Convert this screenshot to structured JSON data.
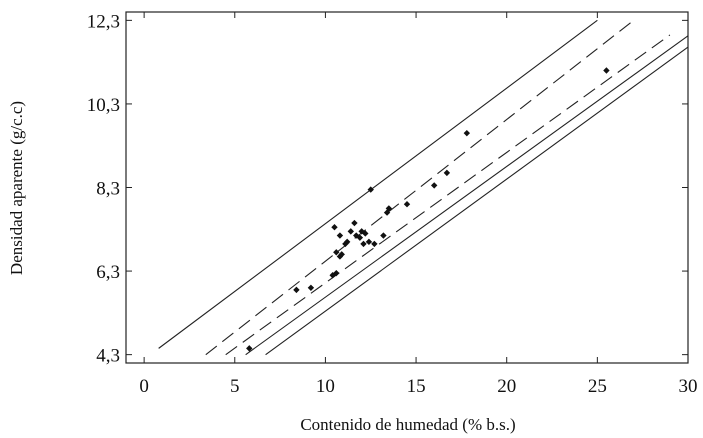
{
  "chart_data": {
    "type": "scatter",
    "title": "",
    "xlabel": "Contenido de humedad (% b.s.)",
    "ylabel": "Densidad aparente (g/c.c)",
    "xlim": [
      -1,
      30
    ],
    "ylim": [
      4.1,
      12.5
    ],
    "grid": false,
    "x_ticks": [
      0,
      5,
      10,
      15,
      20,
      25,
      30
    ],
    "y_ticks": [
      4.3,
      6.3,
      8.3,
      10.3,
      12.3
    ],
    "x_tick_labels": [
      "0",
      "5",
      "10",
      "15",
      "20",
      "25",
      "30"
    ],
    "y_tick_labels": [
      "4,3",
      "6,3",
      "8,3",
      "10,3",
      "12,3"
    ],
    "points": [
      {
        "x": 5.8,
        "y": 4.45
      },
      {
        "x": 8.4,
        "y": 5.85
      },
      {
        "x": 9.2,
        "y": 5.9
      },
      {
        "x": 10.4,
        "y": 6.2
      },
      {
        "x": 10.6,
        "y": 6.25
      },
      {
        "x": 10.6,
        "y": 6.75
      },
      {
        "x": 10.8,
        "y": 6.65
      },
      {
        "x": 10.9,
        "y": 6.7
      },
      {
        "x": 11.1,
        "y": 6.95
      },
      {
        "x": 11.2,
        "y": 7.0
      },
      {
        "x": 10.5,
        "y": 7.35
      },
      {
        "x": 10.8,
        "y": 7.15
      },
      {
        "x": 11.4,
        "y": 7.25
      },
      {
        "x": 11.6,
        "y": 7.45
      },
      {
        "x": 11.7,
        "y": 7.15
      },
      {
        "x": 11.9,
        "y": 7.1
      },
      {
        "x": 12.0,
        "y": 7.25
      },
      {
        "x": 12.1,
        "y": 6.95
      },
      {
        "x": 12.2,
        "y": 7.2
      },
      {
        "x": 12.4,
        "y": 7.0
      },
      {
        "x": 12.5,
        "y": 8.25
      },
      {
        "x": 12.7,
        "y": 6.95
      },
      {
        "x": 13.2,
        "y": 7.15
      },
      {
        "x": 13.4,
        "y": 7.7
      },
      {
        "x": 13.5,
        "y": 7.8
      },
      {
        "x": 14.5,
        "y": 7.9
      },
      {
        "x": 16.0,
        "y": 8.35
      },
      {
        "x": 16.7,
        "y": 8.65
      },
      {
        "x": 17.8,
        "y": 9.6
      },
      {
        "x": 25.5,
        "y": 11.1
      }
    ],
    "fit_line": {
      "x": [
        5.6,
        30
      ],
      "y": [
        4.3,
        11.93
      ]
    },
    "confidence_band": {
      "lower": {
        "x": [
          4.5,
          29
        ],
        "y": [
          4.3,
          11.95
        ]
      },
      "upper": {
        "x": [
          3.4,
          27
        ],
        "y": [
          4.3,
          12.3
        ]
      }
    },
    "prediction_band": {
      "lower": {
        "x": [
          6.7,
          30
        ],
        "y": [
          4.3,
          11.66
        ]
      },
      "upper": {
        "x": [
          0.8,
          25
        ],
        "y": [
          4.45,
          12.3
        ]
      }
    }
  }
}
